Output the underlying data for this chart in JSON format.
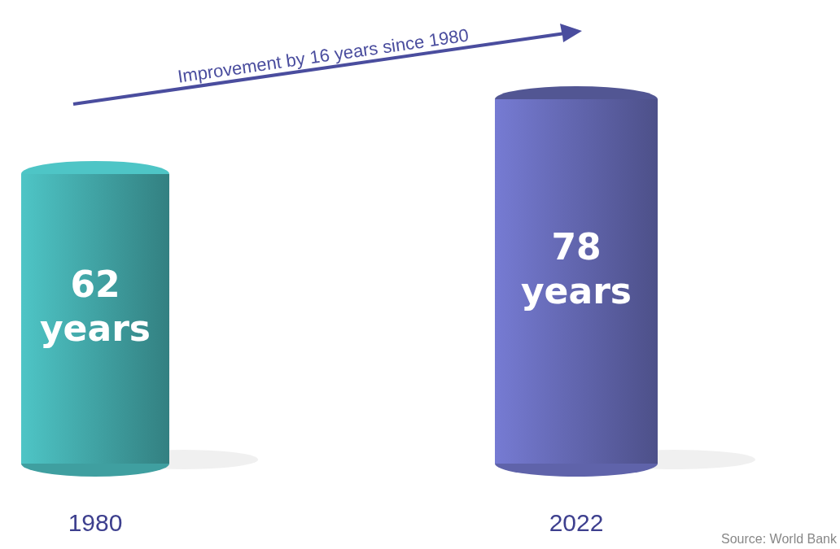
{
  "chart_data": {
    "type": "bar",
    "categories": [
      "1980",
      "2022"
    ],
    "values": [
      62,
      78
    ],
    "colors": [
      "#3f9fa0",
      "#5f63aa"
    ],
    "value_labels": [
      "62 years",
      "78 years"
    ],
    "annotations": [
      "Improvement by 16 years since 1980",
      "Source: World Bank"
    ]
  }
}
